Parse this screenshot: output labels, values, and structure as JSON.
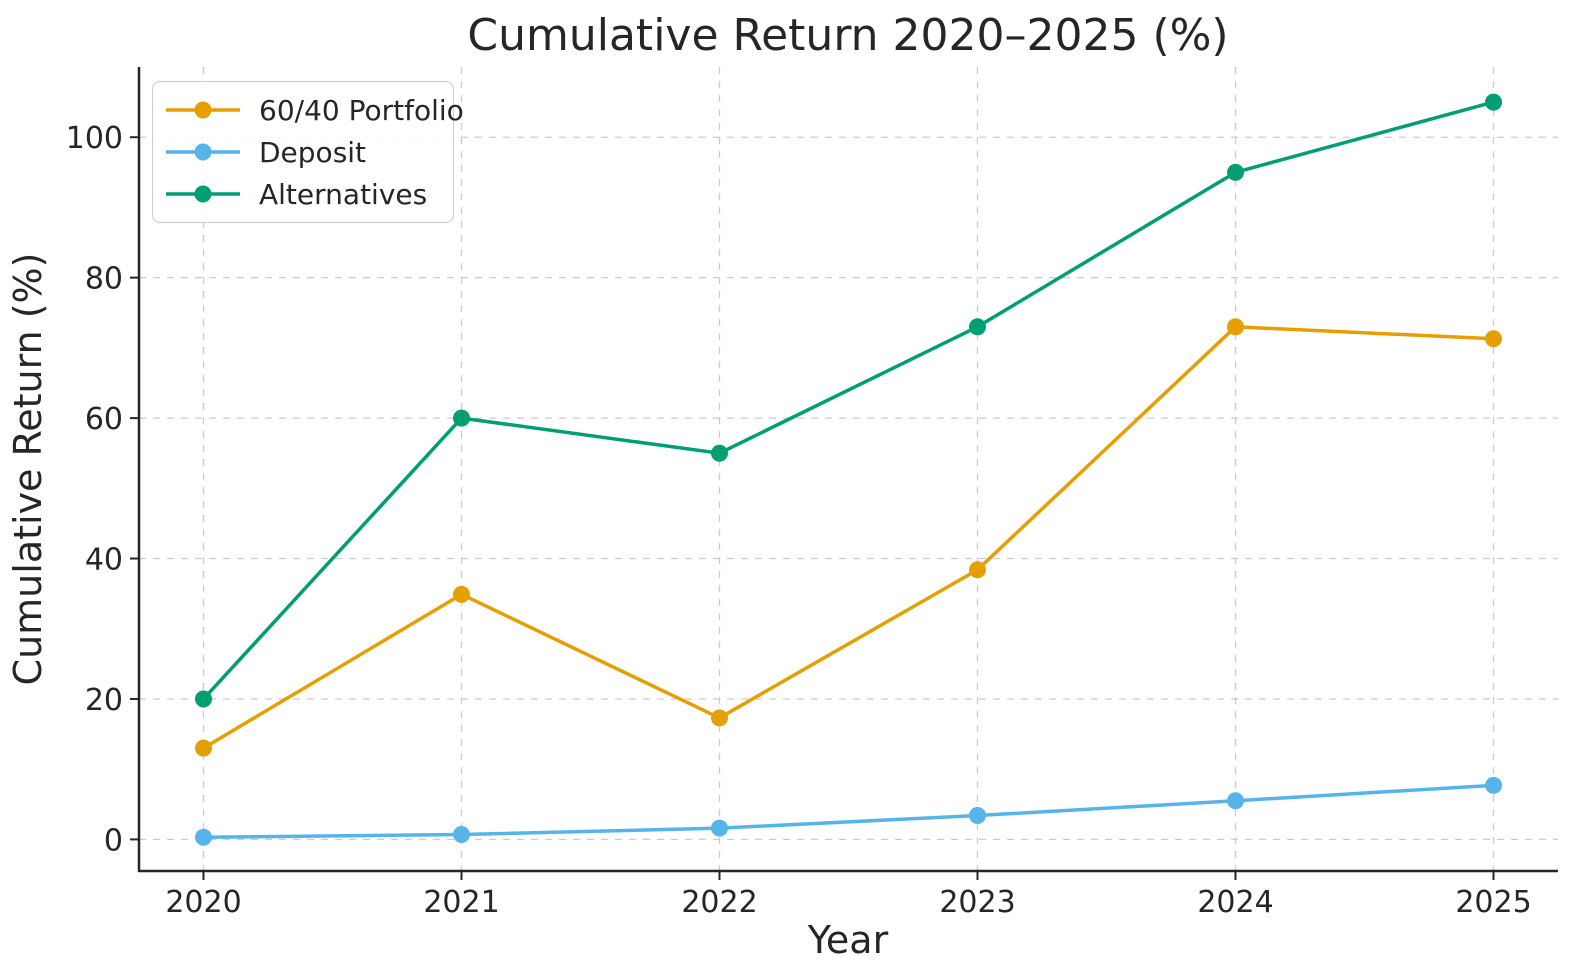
{
  "figure": {
    "background": "#ffffff",
    "text_color": "#262626",
    "spine_color": "#262626",
    "grid_color": "#cccccc"
  },
  "chart_data": {
    "type": "line",
    "title": "Cumulative Return 2020–2025 (%)",
    "xlabel": "Year",
    "ylabel": "Cumulative Return (%)",
    "x": [
      2020,
      2021,
      2022,
      2023,
      2024,
      2025
    ],
    "xtick_labels": [
      "2020",
      "2021",
      "2022",
      "2023",
      "2024",
      "2025"
    ],
    "yticks": [
      0,
      20,
      40,
      60,
      80,
      100
    ],
    "xlim": [
      2019.75,
      2025.25
    ],
    "ylim": [
      -4.5,
      110
    ],
    "grid": "dashed",
    "legend_position": "upper-left",
    "series": [
      {
        "name": "60/40 Portfolio",
        "color": "#E69F00",
        "values": [
          13.0,
          34.9,
          17.3,
          38.4,
          73.0,
          71.3
        ]
      },
      {
        "name": "Deposit",
        "color": "#56B4E9",
        "values": [
          0.3,
          0.7,
          1.6,
          3.4,
          5.5,
          7.7
        ]
      },
      {
        "name": "Alternatives",
        "color": "#009E73",
        "values": [
          20.0,
          60.0,
          55.0,
          73.0,
          95.0,
          105.0
        ]
      }
    ]
  }
}
